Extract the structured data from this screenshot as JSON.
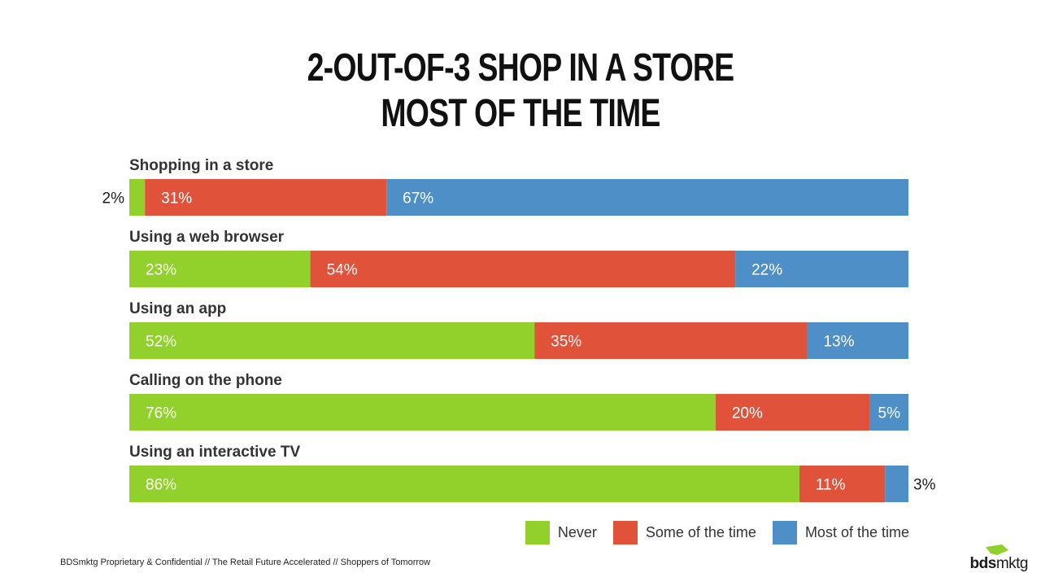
{
  "title_line1": "2-OUT-OF-3 SHOP IN A STORE",
  "title_line2": "MOST OF THE TIME",
  "colors": {
    "never": "#92d12b",
    "some": "#e0533a",
    "most": "#4f8fc8"
  },
  "legend": {
    "never": "Never",
    "some": "Some of the time",
    "most": "Most of the time"
  },
  "footer": "BDSmktg Proprietary & Confidential // The Retail Future Accelerated // Shoppers of Tomorrow",
  "logo": {
    "bold": "bds",
    "light": "mktg"
  },
  "chart_data": {
    "type": "bar",
    "orientation": "horizontal-stacked-100",
    "categories": [
      "Shopping in a store",
      "Using a web browser",
      "Using an app",
      "Calling on the phone",
      "Using an interactive TV"
    ],
    "series": [
      {
        "name": "Never",
        "values": [
          2,
          23,
          52,
          76,
          86
        ]
      },
      {
        "name": "Some of the time",
        "values": [
          31,
          54,
          35,
          20,
          11
        ]
      },
      {
        "name": "Most of the time",
        "values": [
          67,
          22,
          13,
          5,
          3
        ]
      }
    ],
    "data_labels": [
      [
        "2%",
        "31%",
        "67%"
      ],
      [
        "23%",
        "54%",
        "22%"
      ],
      [
        "52%",
        "35%",
        "13%"
      ],
      [
        "76%",
        "20%",
        "5%"
      ],
      [
        "86%",
        "11%",
        "3%"
      ]
    ],
    "legend_position": "bottom-right",
    "grid": false
  }
}
